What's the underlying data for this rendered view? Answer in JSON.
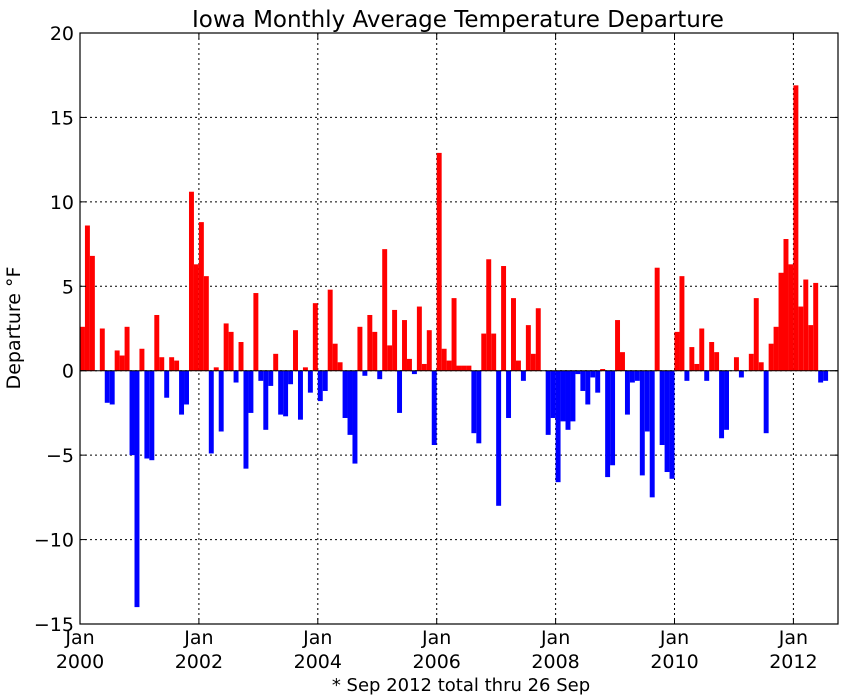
{
  "chart_data": {
    "type": "bar",
    "title": "Iowa Monthly Average Temperature Departure",
    "ylabel": "Departure °F",
    "footnote": "* Sep 2012 total thru 26 Sep",
    "ylim": [
      -15,
      20
    ],
    "yticks": [
      -15,
      -10,
      -5,
      0,
      5,
      10,
      15,
      20
    ],
    "xlim": [
      "2000-01",
      "2012-10"
    ],
    "xticks": [
      {
        "month": "Jan",
        "year": "2000",
        "date": "2000-01"
      },
      {
        "month": "Jan",
        "year": "2002",
        "date": "2002-01"
      },
      {
        "month": "Jan",
        "year": "2004",
        "date": "2004-01"
      },
      {
        "month": "Jan",
        "year": "2006",
        "date": "2006-01"
      },
      {
        "month": "Jan",
        "year": "2008",
        "date": "2008-01"
      },
      {
        "month": "Jan",
        "year": "2010",
        "date": "2010-01"
      },
      {
        "month": "Jan",
        "year": "2012",
        "date": "2012-01"
      }
    ],
    "grid": true,
    "start_month": "2000-01",
    "colors": {
      "positive": "#ff0000",
      "negative": "#0000ff"
    },
    "values": [
      2.6,
      8.6,
      6.8,
      0.0,
      2.5,
      -1.9,
      -2.0,
      1.2,
      0.9,
      2.6,
      -5.0,
      -14.0,
      1.3,
      -5.2,
      -5.3,
      3.3,
      0.8,
      -1.6,
      0.8,
      0.6,
      -2.6,
      -2.0,
      10.6,
      6.3,
      8.8,
      5.6,
      -4.9,
      0.2,
      -3.6,
      2.8,
      2.3,
      -0.7,
      1.7,
      -5.8,
      -2.5,
      4.6,
      -0.6,
      -3.5,
      -0.9,
      1.0,
      -2.6,
      -2.7,
      -0.8,
      2.4,
      -2.9,
      0.2,
      -1.3,
      4.0,
      -1.8,
      -1.2,
      4.8,
      1.6,
      0.5,
      -2.8,
      -3.8,
      -5.5,
      2.6,
      -0.3,
      3.3,
      2.3,
      -0.5,
      7.2,
      1.5,
      3.6,
      -2.5,
      3.0,
      0.7,
      -0.2,
      3.8,
      0.4,
      2.4,
      -4.4,
      12.9,
      1.3,
      0.6,
      4.3,
      0.3,
      0.3,
      0.3,
      -3.7,
      -4.3,
      2.2,
      6.6,
      2.2,
      -8.0,
      6.2,
      -2.8,
      4.3,
      0.6,
      -0.6,
      2.7,
      1.0,
      3.7,
      0.0,
      -3.8,
      -2.8,
      -6.6,
      -3.0,
      -3.5,
      -3.0,
      -0.2,
      -1.2,
      -2.0,
      -0.4,
      -1.3,
      0.1,
      -6.3,
      -5.6,
      3.0,
      1.1,
      -2.6,
      -0.7,
      -0.6,
      -6.2,
      -3.6,
      -7.5,
      6.1,
      -4.4,
      -6.0,
      -6.4,
      2.3,
      5.6,
      -0.6,
      1.4,
      0.4,
      2.5,
      -0.6,
      1.7,
      1.1,
      -4.0,
      -3.5,
      0.0,
      0.8,
      -0.4,
      0.0,
      1.0,
      4.3,
      0.5,
      -3.7,
      1.6,
      2.6,
      5.8,
      7.8,
      6.3,
      16.9,
      3.8,
      5.4,
      2.7,
      5.2,
      -0.7,
      -0.6
    ]
  }
}
